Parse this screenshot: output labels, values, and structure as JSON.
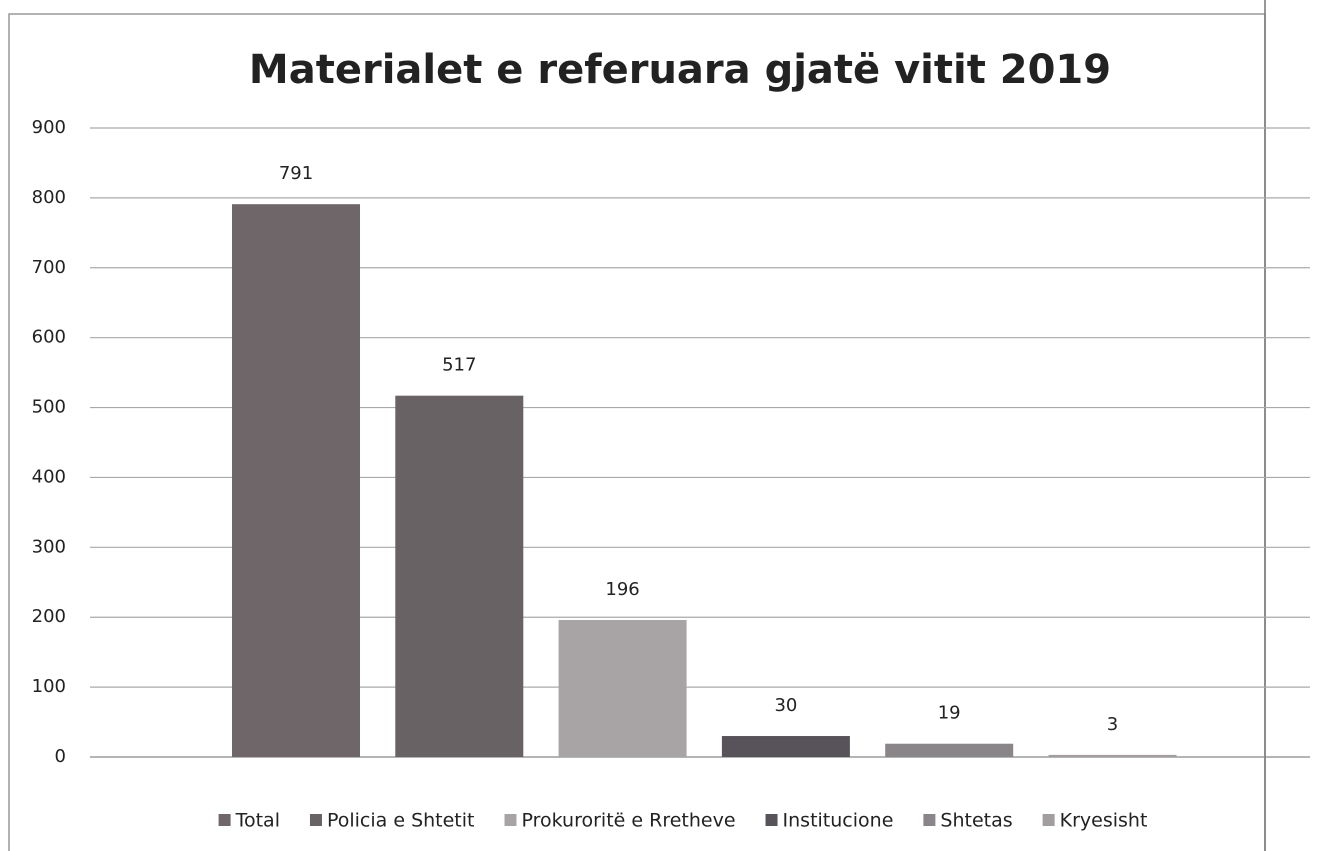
{
  "chart_data": {
    "type": "bar",
    "title": "Materialet e referuara gjatë vitit 2019",
    "categories": [
      null
    ],
    "series": [
      {
        "name": "Total",
        "color": "#6e6669",
        "values": [
          791
        ]
      },
      {
        "name": "Policia e Shtetit",
        "color": "#686264",
        "values": [
          517
        ]
      },
      {
        "name": "Prokuroritë e Rretheve",
        "color": "#a8a4a6",
        "values": [
          196
        ]
      },
      {
        "name": "Institucione",
        "color": "#58525a",
        "values": [
          30
        ]
      },
      {
        "name": "Shtetas",
        "color": "#8a8588",
        "values": [
          19
        ]
      },
      {
        "name": "Kryesisht",
        "color": "#a29ea0",
        "values": [
          3
        ]
      }
    ],
    "ylim": [
      0,
      900
    ],
    "yticks": [
      0,
      100,
      200,
      300,
      400,
      500,
      600,
      700,
      800,
      900
    ],
    "grid": true,
    "legend": "bottom",
    "data_labels": true
  }
}
